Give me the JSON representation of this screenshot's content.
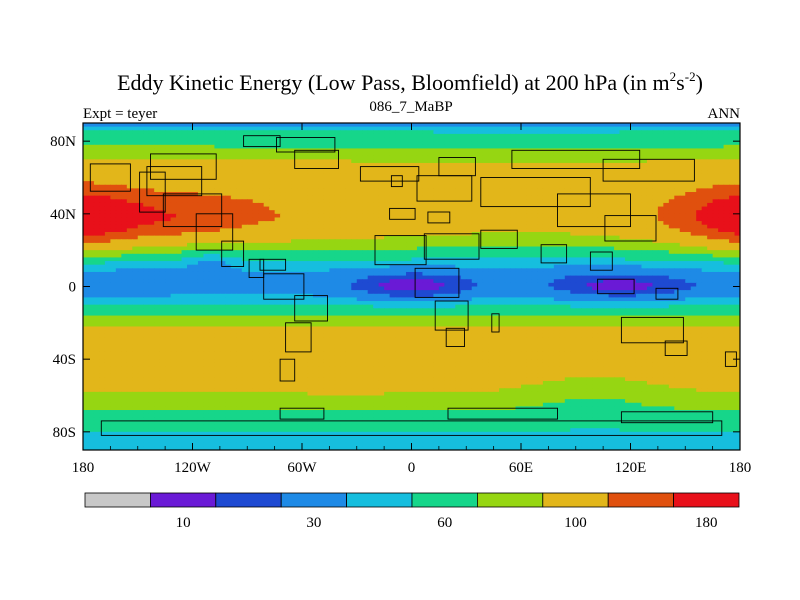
{
  "chart_data": {
    "type": "heatmap",
    "title": "Eddy Kinetic Energy (Low Pass, Bloomfield) at 200 hPa (in m",
    "title_unit": {
      "base": "m",
      "sup1": "2",
      "mid": "s",
      "sup2": "-2",
      "close": ")"
    },
    "left_string": "Expt = teyer",
    "center_string": "086_7_MaBP",
    "right_string": "ANN",
    "x_range": [
      -180,
      180
    ],
    "y_range": [
      -90,
      90
    ],
    "x_ticks": [
      {
        "value": -180,
        "label": "180"
      },
      {
        "value": -120,
        "label": "120W"
      },
      {
        "value": -60,
        "label": "60W"
      },
      {
        "value": 0,
        "label": "0"
      },
      {
        "value": 60,
        "label": "60E"
      },
      {
        "value": 120,
        "label": "120E"
      },
      {
        "value": 180,
        "label": "180"
      }
    ],
    "y_ticks": [
      {
        "value": 80,
        "label": "80N"
      },
      {
        "value": 40,
        "label": "40N"
      },
      {
        "value": 0,
        "label": "0"
      },
      {
        "value": -40,
        "label": "40S"
      },
      {
        "value": -80,
        "label": "80S"
      }
    ],
    "levels": [
      10,
      20,
      30,
      45,
      60,
      80,
      100,
      140,
      180
    ],
    "colors": [
      "#c8c8c8",
      "#6a1ad6",
      "#1e4ad2",
      "#1e8ae6",
      "#16bede",
      "#16d68a",
      "#96d612",
      "#e2b61a",
      "#e0500e",
      "#e8101a"
    ],
    "colorbar_labels": [
      {
        "index": 1,
        "label": "10"
      },
      {
        "index": 3,
        "label": "30"
      },
      {
        "index": 5,
        "label": "60"
      },
      {
        "index": 7,
        "label": "100"
      },
      {
        "index": 9,
        "label": "180"
      }
    ],
    "zonal_profile": [
      {
        "lat": 90,
        "value": 40
      },
      {
        "lat": 86,
        "value": 58
      },
      {
        "lat": 80,
        "value": 72
      },
      {
        "lat": 74,
        "value": 88
      },
      {
        "lat": 66,
        "value": 110
      },
      {
        "lat": 56,
        "value": 122
      },
      {
        "lat": 46,
        "value": 132
      },
      {
        "lat": 38,
        "value": 134
      },
      {
        "lat": 30,
        "value": 118
      },
      {
        "lat": 24,
        "value": 95
      },
      {
        "lat": 18,
        "value": 75
      },
      {
        "lat": 12,
        "value": 52
      },
      {
        "lat": 6,
        "value": 42
      },
      {
        "lat": 0,
        "value": 40
      },
      {
        "lat": -6,
        "value": 48
      },
      {
        "lat": -12,
        "value": 66
      },
      {
        "lat": -18,
        "value": 88
      },
      {
        "lat": -24,
        "value": 104
      },
      {
        "lat": -32,
        "value": 112
      },
      {
        "lat": -40,
        "value": 114
      },
      {
        "lat": -50,
        "value": 110
      },
      {
        "lat": -58,
        "value": 100
      },
      {
        "lat": -66,
        "value": 84
      },
      {
        "lat": -74,
        "value": 68
      },
      {
        "lat": -80,
        "value": 60
      },
      {
        "lat": -86,
        "value": 54
      },
      {
        "lat": -90,
        "value": 48
      }
    ],
    "features": [
      {
        "lon": -145,
        "lat": 38,
        "amp": 48,
        "slon": 38,
        "slat": 9
      },
      {
        "lon": 175,
        "lat": 38,
        "amp": 45,
        "slon": 22,
        "slat": 11
      },
      {
        "lon": -175,
        "lat": 38,
        "amp": 30,
        "slon": 14,
        "slat": 11
      },
      {
        "lon": 65,
        "lat": 42,
        "amp": -22,
        "slon": 45,
        "slat": 16
      },
      {
        "lon": -10,
        "lat": 45,
        "amp": -12,
        "slon": 30,
        "slat": 12
      },
      {
        "lon": 0,
        "lat": 0,
        "amp": -26,
        "slon": 25,
        "slat": 6
      },
      {
        "lon": 115,
        "lat": 0,
        "amp": -24,
        "slon": 30,
        "slat": 6
      },
      {
        "lon": -150,
        "lat": 3,
        "amp": -8,
        "slon": 25,
        "slat": 5
      },
      {
        "lon": 100,
        "lat": -58,
        "amp": -14,
        "slon": 25,
        "slat": 10
      },
      {
        "lon": -110,
        "lat": 15,
        "amp": -15,
        "slon": 10,
        "slat": 5
      },
      {
        "lon": -35,
        "lat": -40,
        "amp": 8,
        "slon": 40,
        "slat": 12
      }
    ],
    "land": [
      {
        "lon": -165,
        "lat": 60,
        "w": 22,
        "h": 15
      },
      {
        "lon": -142,
        "lat": 52,
        "w": 14,
        "h": 22
      },
      {
        "lon": -130,
        "lat": 58,
        "w": 30,
        "h": 16
      },
      {
        "lon": -125,
        "lat": 66,
        "w": 36,
        "h": 14
      },
      {
        "lon": -120,
        "lat": 42,
        "w": 32,
        "h": 18
      },
      {
        "lon": -108,
        "lat": 30,
        "w": 20,
        "h": 20
      },
      {
        "lon": -98,
        "lat": 18,
        "w": 12,
        "h": 14
      },
      {
        "lon": -85,
        "lat": 10,
        "w": 8,
        "h": 10
      },
      {
        "lon": -58,
        "lat": 78,
        "w": 32,
        "h": 8
      },
      {
        "lon": -52,
        "lat": 70,
        "w": 24,
        "h": 10
      },
      {
        "lon": -82,
        "lat": 80,
        "w": 20,
        "h": 6
      },
      {
        "lon": -76,
        "lat": 12,
        "w": 14,
        "h": 6
      },
      {
        "lon": -70,
        "lat": 0,
        "w": 22,
        "h": 14
      },
      {
        "lon": -55,
        "lat": -12,
        "w": 18,
        "h": 14
      },
      {
        "lon": -62,
        "lat": -28,
        "w": 14,
        "h": 16
      },
      {
        "lon": -68,
        "lat": -46,
        "w": 8,
        "h": 12
      },
      {
        "lon": -12,
        "lat": 62,
        "w": 32,
        "h": 8
      },
      {
        "lon": -8,
        "lat": 58,
        "w": 6,
        "h": 6
      },
      {
        "lon": 18,
        "lat": 54,
        "w": 30,
        "h": 14
      },
      {
        "lon": 25,
        "lat": 66,
        "w": 20,
        "h": 10
      },
      {
        "lon": -5,
        "lat": 40,
        "w": 14,
        "h": 6
      },
      {
        "lon": 15,
        "lat": 38,
        "w": 12,
        "h": 6
      },
      {
        "lon": -6,
        "lat": 20,
        "w": 28,
        "h": 16
      },
      {
        "lon": 22,
        "lat": 22,
        "w": 30,
        "h": 14
      },
      {
        "lon": 14,
        "lat": 2,
        "w": 24,
        "h": 16
      },
      {
        "lon": 22,
        "lat": -16,
        "w": 18,
        "h": 16
      },
      {
        "lon": 24,
        "lat": -28,
        "w": 10,
        "h": 10
      },
      {
        "lon": 46,
        "lat": -20,
        "w": 4,
        "h": 10
      },
      {
        "lon": 68,
        "lat": 52,
        "w": 60,
        "h": 16
      },
      {
        "lon": 90,
        "lat": 70,
        "w": 70,
        "h": 10
      },
      {
        "lon": 130,
        "lat": 64,
        "w": 50,
        "h": 12
      },
      {
        "lon": 100,
        "lat": 42,
        "w": 40,
        "h": 18
      },
      {
        "lon": 120,
        "lat": 32,
        "w": 28,
        "h": 14
      },
      {
        "lon": 48,
        "lat": 26,
        "w": 20,
        "h": 10
      },
      {
        "lon": 78,
        "lat": 18,
        "w": 14,
        "h": 10
      },
      {
        "lon": 104,
        "lat": 14,
        "w": 12,
        "h": 10
      },
      {
        "lon": 112,
        "lat": 0,
        "w": 20,
        "h": 8
      },
      {
        "lon": 140,
        "lat": -4,
        "w": 12,
        "h": 6
      },
      {
        "lon": 132,
        "lat": -24,
        "w": 34,
        "h": 14
      },
      {
        "lon": 145,
        "lat": -34,
        "w": 12,
        "h": 8
      },
      {
        "lon": 175,
        "lat": -40,
        "w": 6,
        "h": 8
      },
      {
        "lon": 0,
        "lat": -78,
        "w": 340,
        "h": 8
      },
      {
        "lon": 50,
        "lat": -70,
        "w": 60,
        "h": 6
      },
      {
        "lon": -60,
        "lat": -70,
        "w": 24,
        "h": 6
      },
      {
        "lon": 140,
        "lat": -72,
        "w": 50,
        "h": 6
      }
    ],
    "axes": {
      "grid": false,
      "colorbar": "bottom",
      "projection": "cylindrical equidistant"
    }
  }
}
